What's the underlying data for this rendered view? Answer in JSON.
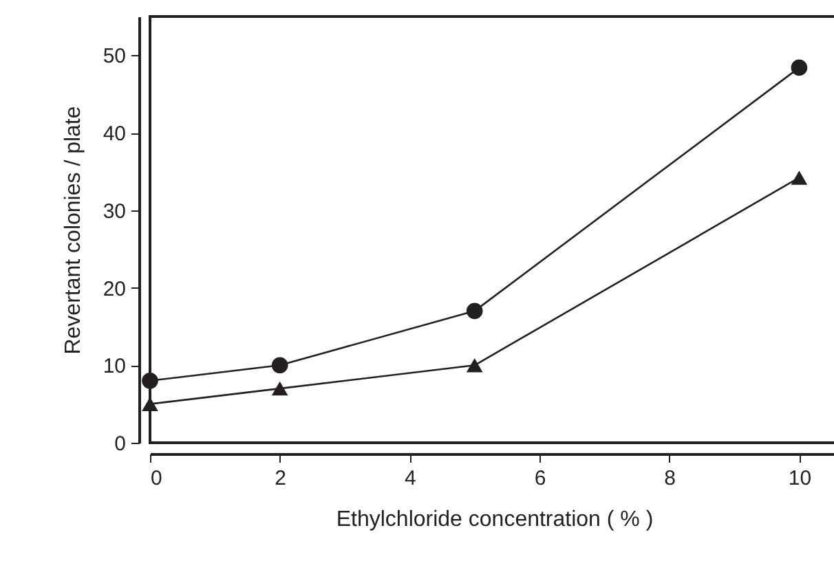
{
  "chart_data": {
    "type": "line",
    "xlabel": "Ethylchloride concentration ( % )",
    "ylabel": "Revertant colonies / plate",
    "x": [
      0,
      2,
      5,
      10
    ],
    "series": [
      {
        "color": "#231f20",
        "marker": "circle",
        "values": [
          8,
          10,
          17,
          48.4
        ]
      },
      {
        "color": "#231f20",
        "marker": "triangle",
        "values": [
          5,
          7,
          10,
          34.2
        ]
      }
    ],
    "xlim": [
      0,
      10.6
    ],
    "xticks": [
      0,
      2,
      4,
      6,
      8,
      10
    ],
    "ylim": [
      0,
      55
    ],
    "yticks": [
      0,
      10,
      20,
      30,
      40,
      50
    ],
    "grid": false,
    "line_style": "solid"
  }
}
